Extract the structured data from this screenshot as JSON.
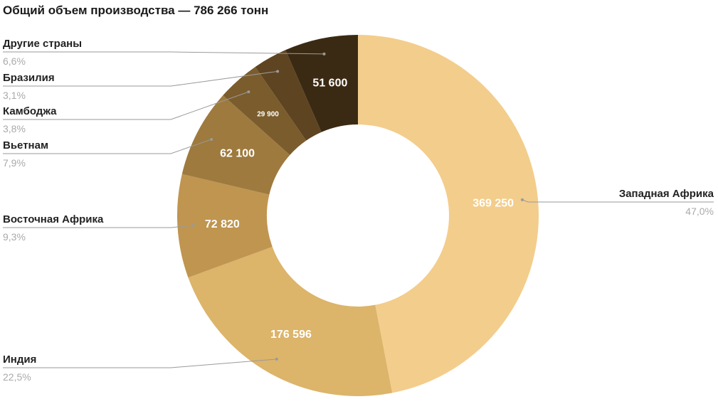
{
  "chart_data": {
    "type": "pie",
    "title": "Общий объем производства — 786 266 тонн",
    "slices": [
      {
        "name": "Западная Африка",
        "value": 369250,
        "value_label": "369 250",
        "percent": "47,0%",
        "color": "#f3cd8b"
      },
      {
        "name": "Индия",
        "value": 176596,
        "value_label": "176 596",
        "percent": "22,5%",
        "color": "#dcb46a"
      },
      {
        "name": "Восточная Африка",
        "value": 72820,
        "value_label": "72 820",
        "percent": "9,3%",
        "color": "#bf9550"
      },
      {
        "name": "Вьетнам",
        "value": 62100,
        "value_label": "62 100",
        "percent": "7,9%",
        "color": "#9e7a3e"
      },
      {
        "name": "Камбоджа",
        "value": 29900,
        "value_label": "29 900",
        "percent": "3,8%",
        "color": "#7b5c2d"
      },
      {
        "name": "Бразилия",
        "value": 24000,
        "value_label": "",
        "percent": "3,1%",
        "color": "#5e4420"
      },
      {
        "name": "Другие страны",
        "value": 51600,
        "value_label": "51 600",
        "percent": "6,6%",
        "color": "#3b2a13"
      }
    ],
    "donut": true,
    "start": "top",
    "direction": "clockwise",
    "legend": "none"
  }
}
